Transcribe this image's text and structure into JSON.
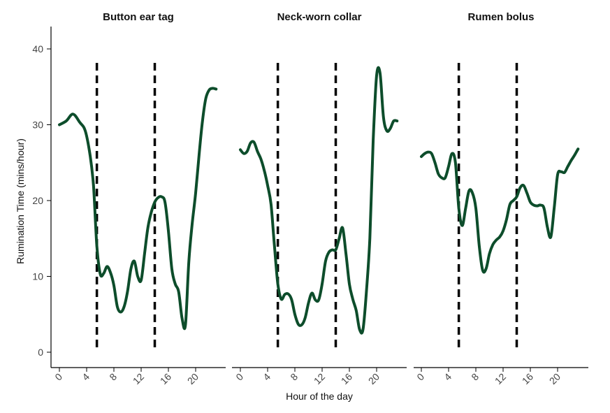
{
  "chart_data": {
    "type": "line",
    "ylabel": "Rumination Time (mins/hour)",
    "xlabel": "Hour of the day",
    "xlim": [
      -1,
      24
    ],
    "ylim": [
      -2,
      43
    ],
    "x_ticks": [
      0,
      4,
      8,
      12,
      16,
      20
    ],
    "y_ticks": [
      0,
      10,
      20,
      30,
      40
    ],
    "reference_lines_x": [
      5.5,
      14
    ],
    "line_color": "#0d4d2b",
    "panels": [
      {
        "title": "Button ear tag",
        "series": [
          {
            "x": [
              0,
              1,
              2,
              3,
              3.8,
              4.5,
              5.0,
              5.5,
              6.0,
              6.5,
              7.0,
              7.5,
              8.0,
              8.5,
              9.0,
              9.5,
              10.0,
              10.5,
              11.0,
              11.5,
              12.0,
              12.5,
              13.0,
              13.5,
              14.0,
              14.5,
              15.0,
              15.5,
              16.0,
              16.5,
              17.0,
              17.5,
              18.0,
              18.5,
              19.0,
              19.5,
              20.0,
              20.5,
              21.0,
              21.5,
              22.0,
              22.5,
              23.0
            ],
            "y": [
              30.0,
              30.5,
              31.4,
              30.3,
              29.2,
              26.0,
              22.0,
              14.0,
              10.3,
              10.4,
              11.3,
              10.5,
              8.8,
              6.0,
              5.3,
              6.0,
              8.0,
              11.0,
              12.0,
              10.0,
              9.5,
              13.0,
              16.5,
              18.5,
              19.8,
              20.4,
              20.5,
              19.8,
              16.0,
              11.0,
              9.0,
              8.0,
              4.5,
              3.6,
              12.0,
              17.0,
              21.0,
              26.0,
              30.5,
              33.5,
              34.6,
              34.8,
              34.7
            ]
          }
        ]
      },
      {
        "title": "Neck-worn collar",
        "series": [
          {
            "x": [
              0,
              0.5,
              1.0,
              1.5,
              2.0,
              2.5,
              3.0,
              3.5,
              4.0,
              4.5,
              5.0,
              5.5,
              6.0,
              6.5,
              7.0,
              7.5,
              8.0,
              8.5,
              9.0,
              9.5,
              10.0,
              10.5,
              11.0,
              11.5,
              12.0,
              12.5,
              13.0,
              13.5,
              14.0,
              14.5,
              15.0,
              15.5,
              16.0,
              16.5,
              17.0,
              17.5,
              18.0,
              18.5,
              19.0,
              19.5,
              20.0,
              20.5,
              21.0,
              21.5,
              22.0,
              22.5,
              23.0
            ],
            "y": [
              26.7,
              26.2,
              26.5,
              27.6,
              27.7,
              26.5,
              25.5,
              24.0,
              22.0,
              19.5,
              14.0,
              9.0,
              7.0,
              7.6,
              7.7,
              7.0,
              5.0,
              3.7,
              3.6,
              4.5,
              6.5,
              7.8,
              6.9,
              6.9,
              9.0,
              12.0,
              13.2,
              13.5,
              13.5,
              15.0,
              16.4,
              13.0,
              9.0,
              7.0,
              5.5,
              3.0,
              3.0,
              8.0,
              15.0,
              28.0,
              36.5,
              36.8,
              31.0,
              29.2,
              29.5,
              30.5,
              30.5
            ]
          }
        ]
      },
      {
        "title": "Rumen bolus",
        "series": [
          {
            "x": [
              0,
              0.5,
              1.0,
              1.5,
              2.0,
              2.5,
              3.0,
              3.5,
              4.0,
              4.5,
              5.0,
              5.5,
              6.0,
              6.5,
              7.0,
              7.5,
              8.0,
              8.5,
              9.0,
              9.5,
              10.0,
              10.5,
              11.0,
              11.5,
              12.0,
              12.5,
              13.0,
              13.5,
              14.0,
              14.5,
              15.0,
              15.5,
              16.0,
              16.5,
              17.0,
              17.5,
              18.0,
              18.5,
              19.0,
              19.5,
              20.0,
              20.5,
              21.0,
              21.5,
              22.0,
              22.5,
              23.0
            ],
            "y": [
              25.8,
              26.2,
              26.4,
              26.2,
              25.0,
              23.5,
              23.0,
              23.0,
              24.5,
              26.2,
              25.0,
              19.0,
              16.7,
              19.0,
              21.3,
              21.0,
              19.0,
              14.0,
              10.8,
              11.0,
              13.0,
              14.2,
              14.8,
              15.2,
              16.0,
              17.5,
              19.5,
              20.0,
              20.5,
              21.7,
              22.0,
              21.0,
              19.8,
              19.4,
              19.3,
              19.4,
              19.0,
              16.5,
              15.2,
              19.0,
              23.4,
              23.8,
              23.7,
              24.5,
              25.3,
              26.0,
              26.8
            ]
          }
        ]
      }
    ]
  }
}
